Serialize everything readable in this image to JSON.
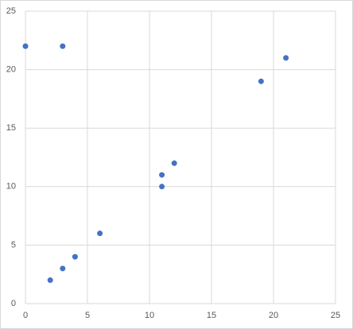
{
  "chart_data": {
    "type": "scatter",
    "series": [
      {
        "color": "#4472c4",
        "x": [
          0,
          3,
          21,
          19,
          12,
          11,
          11,
          6,
          4,
          3,
          2
        ],
        "values": [
          22,
          22,
          21,
          19,
          12,
          11,
          10,
          6,
          4,
          3,
          2
        ]
      }
    ],
    "xlim": [
      0,
      25
    ],
    "xticks": [
      0,
      5,
      10,
      15,
      20,
      25
    ],
    "ylim": [
      0,
      25
    ],
    "yticks": [
      0,
      5,
      10,
      15,
      20,
      25
    ],
    "grid": true
  }
}
